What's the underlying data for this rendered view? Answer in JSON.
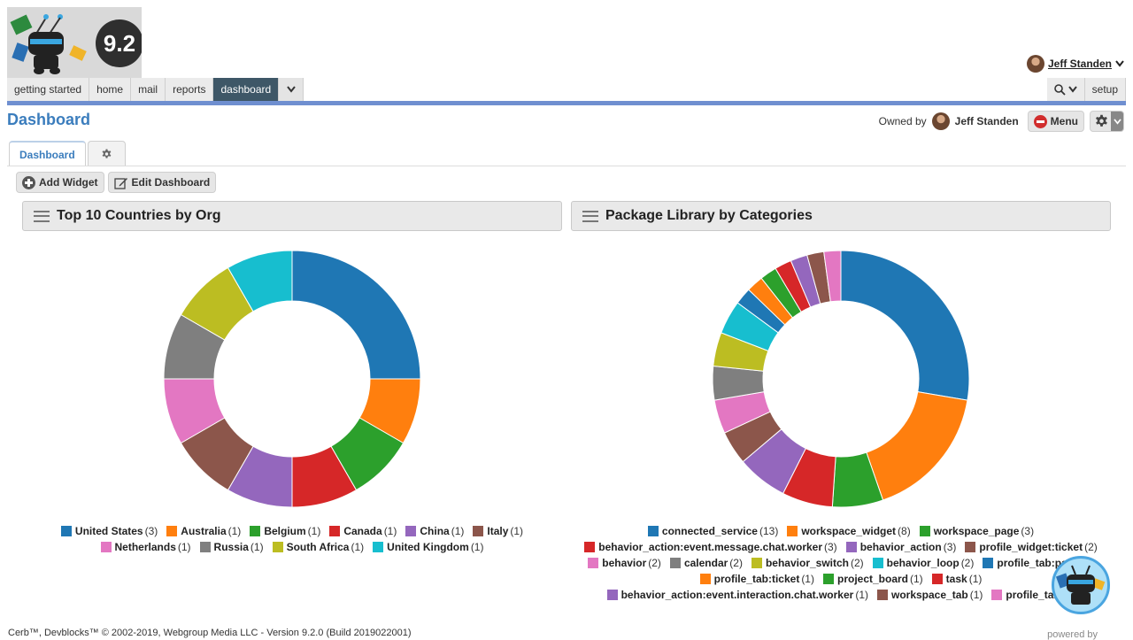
{
  "app": {
    "version_badge": "9.2",
    "user_name": "Jeff Standen"
  },
  "nav": {
    "tabs": [
      "getting started",
      "home",
      "mail",
      "reports",
      "dashboard"
    ],
    "active": "dashboard",
    "setup_label": "setup"
  },
  "page": {
    "title": "Dashboard",
    "owned_by_label": "Owned by",
    "owner_name": "Jeff Standen",
    "menu_label": "Menu",
    "tabs": [
      "Dashboard"
    ],
    "add_widget_label": "Add Widget",
    "edit_dashboard_label": "Edit Dashboard"
  },
  "widgets": [
    {
      "title": "Top 10 Countries by Org"
    },
    {
      "title": "Package Library by Categories"
    }
  ],
  "chart_data": [
    {
      "type": "pie",
      "title": "Top 10 Countries by Org",
      "donut": true,
      "legend_position": "bottom",
      "labels": [
        "United States",
        "Australia",
        "Belgium",
        "Canada",
        "China",
        "Italy",
        "Netherlands",
        "Russia",
        "South Africa",
        "United Kingdom"
      ],
      "values": [
        3,
        1,
        1,
        1,
        1,
        1,
        1,
        1,
        1,
        1
      ],
      "colors": [
        "#1f77b4",
        "#ff7f0e",
        "#2ca02c",
        "#d62728",
        "#9467bd",
        "#8c564b",
        "#e377c2",
        "#7f7f7f",
        "#bcbd22",
        "#17becf"
      ]
    },
    {
      "type": "pie",
      "title": "Package Library by Categories",
      "donut": true,
      "legend_position": "bottom",
      "labels": [
        "connected_service",
        "workspace_widget",
        "workspace_page",
        "behavior_action:event.message.chat.worker",
        "behavior_action",
        "profile_widget:ticket",
        "behavior",
        "calendar",
        "behavior_switch",
        "behavior_loop",
        "profile_tab:pack",
        "profile_tab:ticket",
        "project_board",
        "task",
        "behavior_action:event.interaction.chat.worker",
        "workspace_tab",
        "profile_tab"
      ],
      "values": [
        13,
        8,
        3,
        3,
        3,
        2,
        2,
        2,
        2,
        2,
        1,
        1,
        1,
        1,
        1,
        1,
        1
      ],
      "colors": [
        "#1f77b4",
        "#ff7f0e",
        "#2ca02c",
        "#d62728",
        "#9467bd",
        "#8c564b",
        "#e377c2",
        "#7f7f7f",
        "#bcbd22",
        "#17becf",
        "#1f77b4",
        "#ff7f0e",
        "#2ca02c",
        "#d62728",
        "#9467bd",
        "#8c564b",
        "#e377c2"
      ]
    }
  ],
  "footer": {
    "text": "Cerb™, Devblocks™ © 2002-2019, Webgroup Media LLC - Version 9.2.0 (Build 2019022001)",
    "powered_by": "powered by"
  },
  "icons": {
    "user_dropdown": "chevron-down-icon",
    "search": "search-icon",
    "gear": "gear-icon",
    "menu_dropdown": "chevron-down-icon",
    "add": "plus-circle-icon",
    "edit": "pencil-square-icon",
    "tab_gear": "gear-icon"
  }
}
